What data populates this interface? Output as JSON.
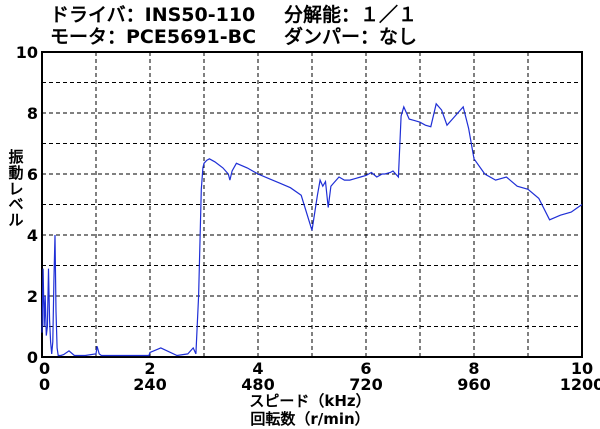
{
  "header": {
    "driver": "ドライバ：INS50-110",
    "resolution": "分解能：１／１",
    "motor": "モータ：PCE5691-BC",
    "damper": "ダンパー：なし"
  },
  "chart_data": {
    "type": "line",
    "title": "",
    "ylabel": "振動レベル",
    "xlabel": "スピード（kHz）",
    "x2label": "回転数（r/min）",
    "xlim": [
      0,
      10
    ],
    "ylim": [
      0,
      10
    ],
    "x_ticks": [
      "0",
      "2",
      "4",
      "6",
      "8",
      "10"
    ],
    "x2_ticks": [
      "0",
      "240",
      "480",
      "720",
      "960",
      "1200"
    ],
    "y_ticks": [
      "0",
      "2",
      "4",
      "6",
      "8",
      "10"
    ],
    "grid": true,
    "line_color": "#1f2fd6",
    "series": [
      {
        "x": [
          0,
          0.02,
          0.04,
          0.06,
          0.08,
          0.1,
          0.12,
          0.14,
          0.16,
          0.18,
          0.2,
          0.22,
          0.24,
          0.26,
          0.28,
          0.3,
          0.35,
          0.4,
          0.5,
          0.6,
          0.7,
          0.8,
          1.0,
          1.02,
          1.06,
          1.1,
          1.2,
          1.5,
          1.8,
          1.98,
          2.0,
          2.2,
          2.5,
          2.7,
          2.8,
          2.85,
          2.9,
          2.95,
          2.98,
          3.0,
          3.05,
          3.1,
          3.2,
          3.35,
          3.45,
          3.48,
          3.52,
          3.6,
          3.8,
          4.0,
          4.2,
          4.4,
          4.6,
          4.8,
          5.0,
          5.1,
          5.15,
          5.2,
          5.25,
          5.3,
          5.35,
          5.4,
          5.5,
          5.6,
          5.7,
          5.8,
          5.9,
          6.0,
          6.1,
          6.2,
          6.3,
          6.35,
          6.45,
          6.5,
          6.6,
          6.65,
          6.7,
          6.75,
          6.8,
          6.9,
          7.0,
          7.1,
          7.2,
          7.3,
          7.4,
          7.5,
          7.6,
          7.7,
          7.8,
          7.9,
          8.0,
          8.2,
          8.4,
          8.6,
          8.8,
          9.0,
          9.2,
          9.4,
          9.6,
          9.8,
          10.0
        ],
        "y": [
          0.8,
          2.9,
          1.0,
          2.0,
          0.7,
          1.0,
          2.9,
          1.2,
          0.5,
          0.1,
          0.5,
          2.5,
          4.0,
          1.5,
          0.3,
          0.05,
          0.05,
          0.08,
          0.2,
          0.05,
          0.05,
          0.05,
          0.1,
          0.35,
          0.1,
          0.05,
          0.05,
          0.05,
          0.05,
          0.05,
          0.15,
          0.3,
          0.05,
          0.1,
          0.3,
          0.1,
          2.0,
          5.5,
          6.2,
          6.35,
          6.45,
          6.5,
          6.4,
          6.2,
          6.0,
          5.8,
          6.1,
          6.35,
          6.2,
          6.0,
          5.85,
          5.7,
          5.55,
          5.3,
          4.15,
          5.3,
          5.8,
          5.6,
          5.75,
          4.9,
          5.6,
          5.7,
          5.9,
          5.8,
          5.8,
          5.85,
          5.9,
          5.95,
          6.05,
          5.9,
          6.0,
          6.0,
          6.05,
          6.1,
          5.9,
          7.9,
          8.2,
          8.0,
          7.8,
          7.75,
          7.7,
          7.6,
          7.55,
          8.3,
          8.1,
          7.6,
          7.8,
          8.0,
          8.2,
          7.5,
          6.5,
          6.0,
          5.8,
          5.9,
          5.6,
          5.5,
          5.2,
          4.5,
          4.65,
          4.75,
          5.0
        ],
        "x_full": [],
        "y_full": []
      }
    ]
  }
}
